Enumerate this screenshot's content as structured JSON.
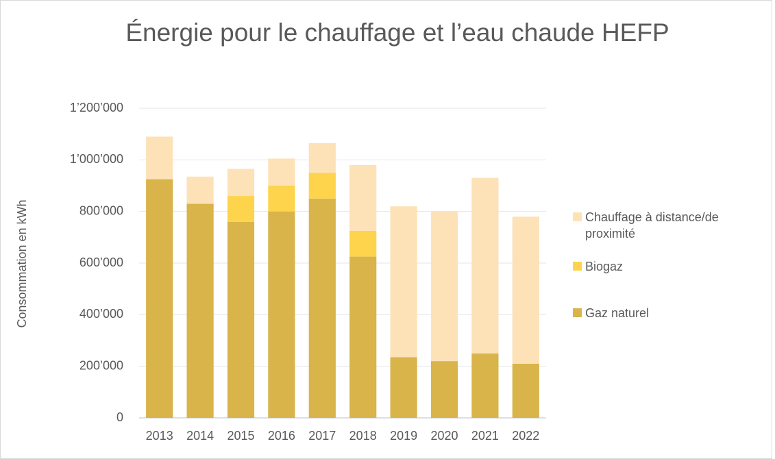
{
  "chart_data": {
    "type": "stacked_bar",
    "title": "Énergie pour le chauffage et l’eau chaude HEFP",
    "y_label": "Consommation en kWh",
    "categories": [
      "2013",
      "2014",
      "2015",
      "2016",
      "2017",
      "2018",
      "2019",
      "2020",
      "2021",
      "2022"
    ],
    "series": [
      {
        "name": "Gaz naturel",
        "color": "#d8b44a",
        "values": [
          925000,
          830000,
          760000,
          800000,
          850000,
          625000,
          235000,
          220000,
          250000,
          210000
        ]
      },
      {
        "name": "Biogaz",
        "color": "#fdd44c",
        "values": [
          0,
          0,
          100000,
          100000,
          100000,
          100000,
          0,
          0,
          0,
          0
        ]
      },
      {
        "name": "Chauffage à distance/de proximité",
        "color": "#fde2b8",
        "values": [
          165000,
          105000,
          105000,
          105000,
          115000,
          255000,
          585000,
          580000,
          680000,
          570000
        ]
      }
    ],
    "ylim": [
      0,
      1200000
    ],
    "yticks": [
      0,
      {
        "value": 200000,
        "label": "200’000"
      },
      {
        "value": 400000,
        "label": "400’000"
      },
      {
        "value": 600000,
        "label": "600’000"
      },
      {
        "value": 800000,
        "label": "800’000"
      },
      {
        "value": 1000000,
        "label": "1’000’000"
      },
      {
        "value": 1200000,
        "label": "1’200’000"
      }
    ],
    "grid": true,
    "legend": "right"
  }
}
